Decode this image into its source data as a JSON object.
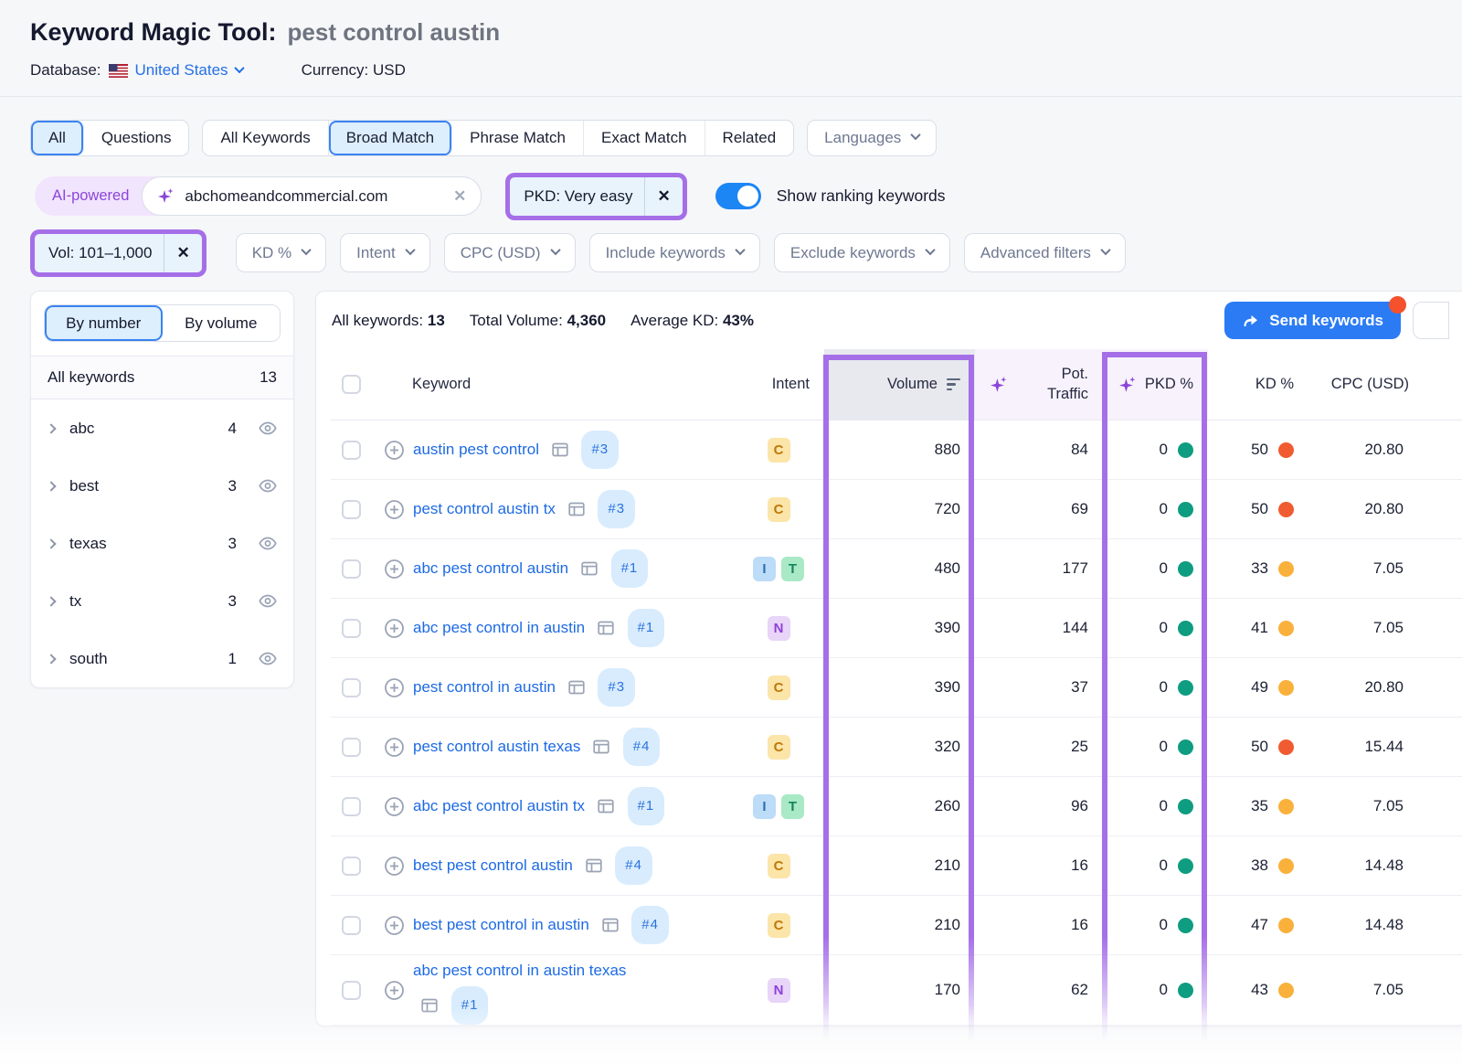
{
  "header": {
    "title": "Keyword Magic Tool:",
    "query": "pest control austin",
    "database_label": "Database:",
    "database_value": "United States",
    "currency": "Currency: USD"
  },
  "tabs": {
    "group1": [
      {
        "label": "All",
        "selected": true
      },
      {
        "label": "Questions",
        "selected": false
      }
    ],
    "group2": [
      {
        "label": "All Keywords",
        "selected": false
      },
      {
        "label": "Broad Match",
        "selected": true
      },
      {
        "label": "Phrase Match",
        "selected": false
      },
      {
        "label": "Exact Match",
        "selected": false
      },
      {
        "label": "Related",
        "selected": false
      }
    ],
    "languages_label": "Languages"
  },
  "filters": {
    "ai_powered_label": "AI-powered",
    "domain_input_value": "abchomeandcommercial.com",
    "pkd_chip_label": "PKD: Very easy",
    "toggle_label": "Show ranking keywords",
    "toggle_on": true,
    "vol_chip_label": "Vol: 101–1,000",
    "dropdowns": [
      "KD %",
      "Intent",
      "CPC (USD)",
      "Include keywords",
      "Exclude keywords",
      "Advanced filters"
    ]
  },
  "sidebar": {
    "view_tabs": [
      {
        "label": "By number",
        "selected": true
      },
      {
        "label": "By volume",
        "selected": false
      }
    ],
    "all_keywords_label": "All keywords",
    "all_keywords_count": "13",
    "groups": [
      {
        "label": "abc",
        "count": "4"
      },
      {
        "label": "best",
        "count": "3"
      },
      {
        "label": "texas",
        "count": "3"
      },
      {
        "label": "tx",
        "count": "3"
      },
      {
        "label": "south",
        "count": "1"
      }
    ]
  },
  "table": {
    "stats": [
      {
        "label": "All keywords:",
        "value": "13"
      },
      {
        "label": "Total Volume:",
        "value": "4,360"
      },
      {
        "label": "Average KD:",
        "value": "43%"
      }
    ],
    "send_button_label": "Send keywords",
    "columns": {
      "keyword": "Keyword",
      "intent": "Intent",
      "volume": "Volume",
      "pot_traffic_line1": "Pot.",
      "pot_traffic_line2": "Traffic",
      "pkd": "PKD %",
      "kd": "KD %",
      "cpc": "CPC (USD)"
    },
    "rows": [
      {
        "keyword": "austin pest control",
        "pos": "#3",
        "intents": [
          "C"
        ],
        "volume": "880",
        "pot_traffic": "84",
        "pkd": "0",
        "kd": "50",
        "kd_level": "red",
        "cpc": "20.80",
        "wrap": false
      },
      {
        "keyword": "pest control austin tx",
        "pos": "#3",
        "intents": [
          "C"
        ],
        "volume": "720",
        "pot_traffic": "69",
        "pkd": "0",
        "kd": "50",
        "kd_level": "red",
        "cpc": "20.80",
        "wrap": false
      },
      {
        "keyword": "abc pest control austin",
        "pos": "#1",
        "intents": [
          "I",
          "T"
        ],
        "volume": "480",
        "pot_traffic": "177",
        "pkd": "0",
        "kd": "33",
        "kd_level": "yellow",
        "cpc": "7.05",
        "wrap": false
      },
      {
        "keyword": "abc pest control in austin",
        "pos": "#1",
        "intents": [
          "N"
        ],
        "volume": "390",
        "pot_traffic": "144",
        "pkd": "0",
        "kd": "41",
        "kd_level": "yellow",
        "cpc": "7.05",
        "wrap": false
      },
      {
        "keyword": "pest control in austin",
        "pos": "#3",
        "intents": [
          "C"
        ],
        "volume": "390",
        "pot_traffic": "37",
        "pkd": "0",
        "kd": "49",
        "kd_level": "yellow",
        "cpc": "20.80",
        "wrap": false
      },
      {
        "keyword": "pest control austin texas",
        "pos": "#4",
        "intents": [
          "C"
        ],
        "volume": "320",
        "pot_traffic": "25",
        "pkd": "0",
        "kd": "50",
        "kd_level": "red",
        "cpc": "15.44",
        "wrap": false
      },
      {
        "keyword": "abc pest control austin tx",
        "pos": "#1",
        "intents": [
          "I",
          "T"
        ],
        "volume": "260",
        "pot_traffic": "96",
        "pkd": "0",
        "kd": "35",
        "kd_level": "yellow",
        "cpc": "7.05",
        "wrap": false
      },
      {
        "keyword": "best pest control austin",
        "pos": "#4",
        "intents": [
          "C"
        ],
        "volume": "210",
        "pot_traffic": "16",
        "pkd": "0",
        "kd": "38",
        "kd_level": "yellow",
        "cpc": "14.48",
        "wrap": false
      },
      {
        "keyword": "best pest control in austin",
        "pos": "#4",
        "intents": [
          "C"
        ],
        "volume": "210",
        "pot_traffic": "16",
        "pkd": "0",
        "kd": "47",
        "kd_level": "yellow",
        "cpc": "14.48",
        "wrap": false
      },
      {
        "keyword": "abc pest control in austin texas",
        "pos": "#1",
        "intents": [
          "N"
        ],
        "volume": "170",
        "pot_traffic": "62",
        "pkd": "0",
        "kd": "43",
        "kd_level": "yellow",
        "cpc": "7.05",
        "wrap": true
      }
    ]
  },
  "icons": {
    "flag": "us-flag-icon",
    "sparkle": "ai-sparkle-icon",
    "eye": "eye-icon",
    "serp": "serp-icon",
    "plus_circle": "add-keyword-icon",
    "sort": "sort-icon",
    "send_arrow": "send-arrow-icon",
    "close": "close-icon",
    "chevron_down": "chevron-down-icon",
    "chevron_right": "chevron-right-icon"
  },
  "colors": {
    "accent_blue": "#2b7bf5",
    "annotation_purple": "#a56fe8",
    "link_blue": "#1d6ae4",
    "pkd_dot_green": "#0e9d80",
    "kd_dot_yellow": "#f9b13c",
    "kd_dot_red": "#f15b31",
    "notification_orange": "#f4512c"
  }
}
